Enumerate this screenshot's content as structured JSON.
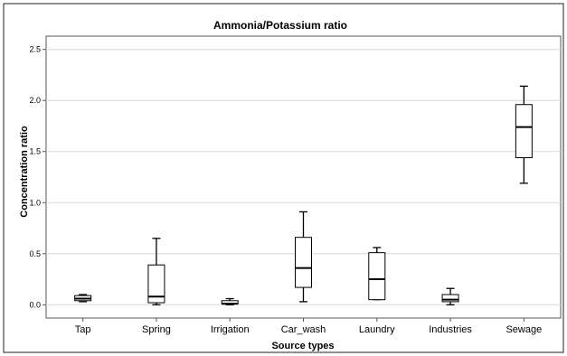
{
  "chart_data": {
    "type": "box",
    "title": "Ammonia/Potassium ratio",
    "xlabel": "Source types",
    "ylabel": "Concentration ratio",
    "ylim": [
      -0.13,
      2.63
    ],
    "yticks": [
      "0.0",
      "0.5",
      "1.0",
      "1.5",
      "2.0",
      "2.5"
    ],
    "ytick_values": [
      0,
      0.5,
      1.0,
      1.5,
      2.0,
      2.5
    ],
    "grid": "horizontal",
    "categories": [
      "Tap",
      "Spring",
      "Irrigation",
      "Car_wash",
      "Laundry",
      "Industries",
      "Sewage"
    ],
    "boxes": [
      {
        "min": 0.03,
        "q1": 0.04,
        "median": 0.06,
        "q3": 0.09,
        "max": 0.1
      },
      {
        "min": 0.0,
        "q1": 0.02,
        "median": 0.08,
        "q3": 0.39,
        "max": 0.65
      },
      {
        "min": 0.0,
        "q1": 0.01,
        "median": 0.01,
        "q3": 0.04,
        "max": 0.06
      },
      {
        "min": 0.03,
        "q1": 0.17,
        "median": 0.36,
        "q3": 0.66,
        "max": 0.91
      },
      {
        "min": 0.05,
        "q1": 0.05,
        "median": 0.25,
        "q3": 0.51,
        "max": 0.56
      },
      {
        "min": 0.0,
        "q1": 0.03,
        "median": 0.05,
        "q3": 0.1,
        "max": 0.16
      },
      {
        "min": 1.19,
        "q1": 1.44,
        "median": 1.74,
        "q3": 1.96,
        "max": 2.14
      }
    ],
    "colors": {
      "box_fill": "#ffffff",
      "stroke": "#000000",
      "grid": "#d8d8d8"
    }
  }
}
